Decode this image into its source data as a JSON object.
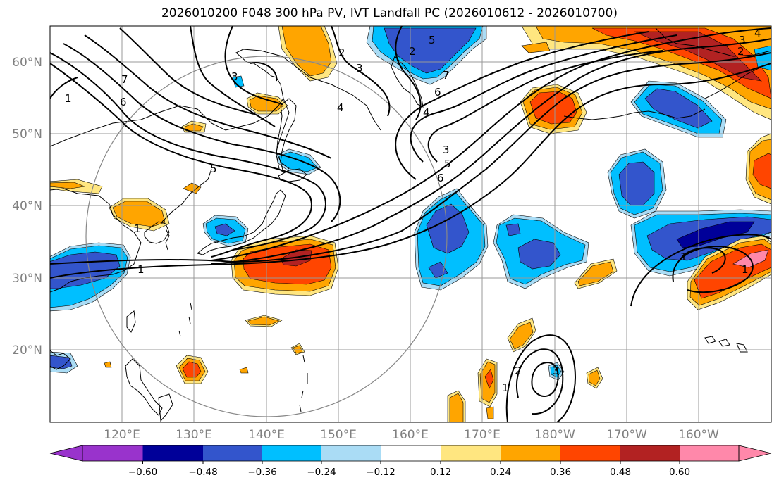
{
  "title": "2026010200 F048 300 hPa PV, IVT Landfall PC (2026010612 - 2026010700)",
  "map": {
    "projection": "PlateCarree",
    "lon_range": [
      110,
      210
    ],
    "lat_range": [
      10,
      65
    ],
    "gridlines": true,
    "lat_ticks": [
      {
        "lat": 60,
        "label": "60°N"
      },
      {
        "lat": 50,
        "label": "50°N"
      },
      {
        "lat": 40,
        "label": "40°N"
      },
      {
        "lat": 30,
        "label": "30°N"
      },
      {
        "lat": 20,
        "label": "20°N"
      }
    ],
    "lon_ticks": [
      {
        "lon": 120,
        "label": "120°E"
      },
      {
        "lon": 130,
        "label": "130°E"
      },
      {
        "lon": 140,
        "label": "140°E"
      },
      {
        "lon": 150,
        "label": "150°E"
      },
      {
        "lon": 160,
        "label": "160°E"
      },
      {
        "lon": 170,
        "label": "170°E"
      },
      {
        "lon": 180,
        "label": "180°W"
      },
      {
        "lon": 190,
        "label": "170°W"
      },
      {
        "lon": 200,
        "label": "160°W"
      }
    ],
    "pv_contour_labels": [
      "1",
      "2",
      "3",
      "4",
      "5",
      "6",
      "7"
    ]
  },
  "colorbar": {
    "ticks": [
      "−0.60",
      "−0.48",
      "−0.36",
      "−0.24",
      "−0.12",
      "0.12",
      "0.24",
      "0.36",
      "0.48",
      "0.60"
    ],
    "colors": [
      "#9933cc",
      "#000099",
      "#3355cc",
      "#00bfff",
      "#aadcf5",
      "#ffffff",
      "#ffe680",
      "#ffa500",
      "#ff4500",
      "#b22222",
      "#ff88aa"
    ]
  }
}
